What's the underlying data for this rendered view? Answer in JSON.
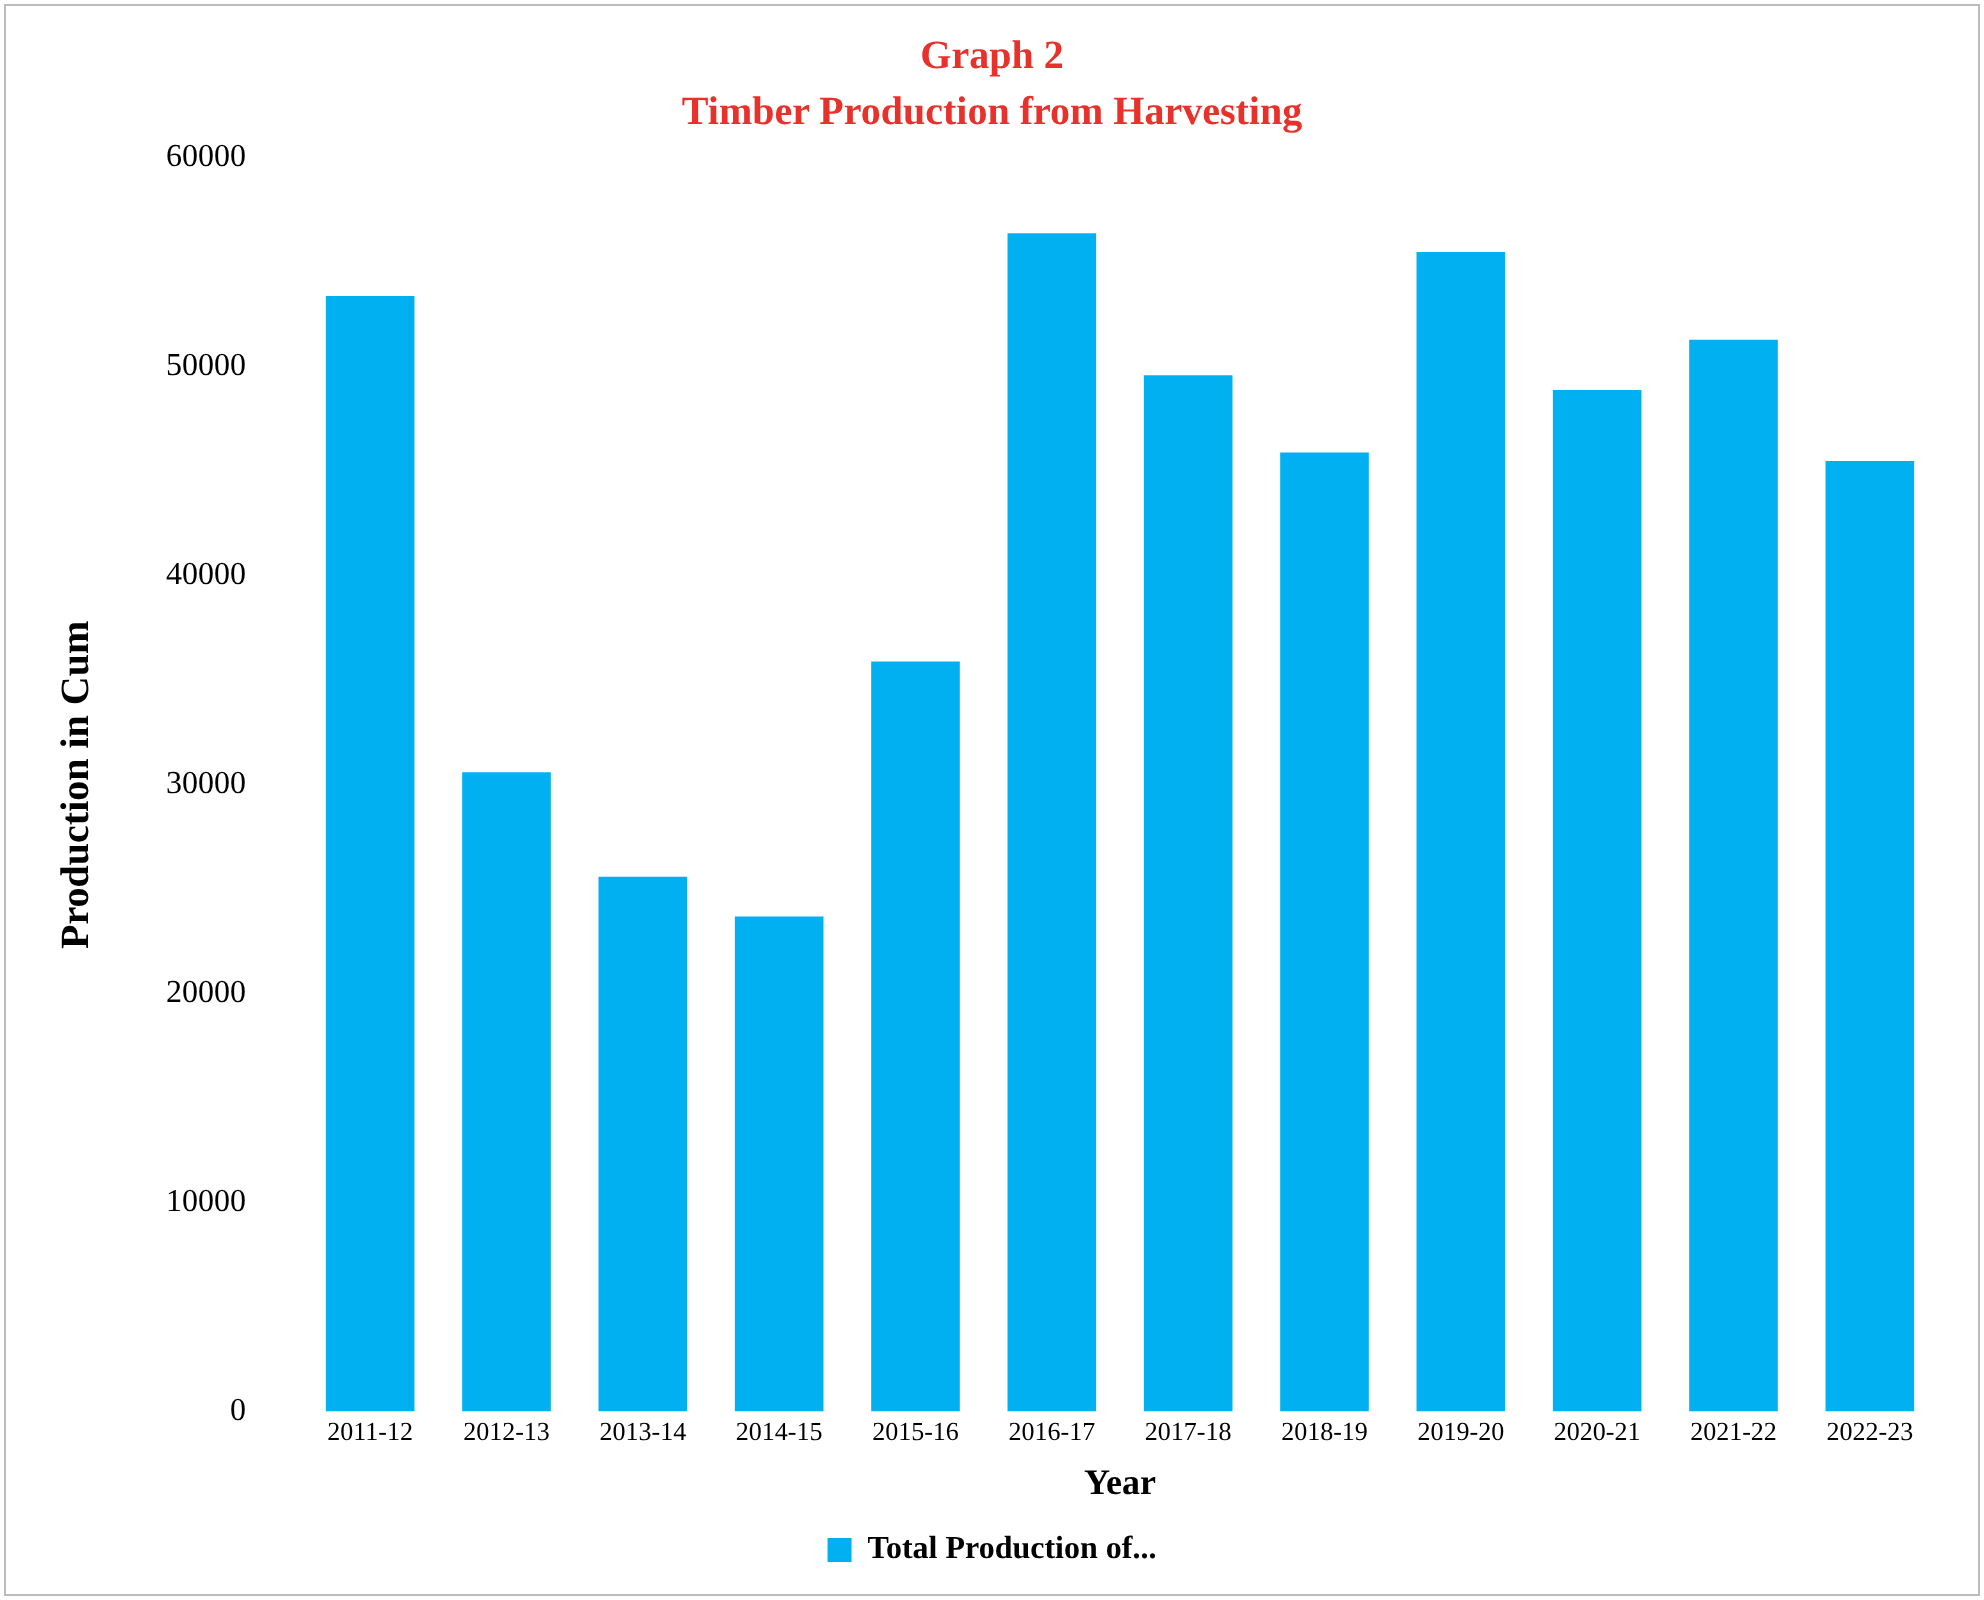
{
  "chart_data": {
    "type": "bar",
    "title": "Graph 2",
    "subtitle": "Timber Production from Harvesting",
    "xlabel": "Year",
    "ylabel": "Production in Cum",
    "categories": [
      "2011-12",
      "2012-13",
      "2013-14",
      "2014-15",
      "2015-16",
      "2016-17",
      "2017-18",
      "2018-19",
      "2019-20",
      "2020-21",
      "2021-22",
      "2022-23"
    ],
    "series": [
      {
        "name": "Total Production of...",
        "color": "#00b0f0",
        "values": [
          53400,
          30600,
          25600,
          23700,
          35900,
          56400,
          49600,
          45900,
          55500,
          48900,
          51300,
          45500
        ]
      }
    ],
    "ylim": [
      0,
      60000
    ],
    "yticks": [
      0,
      10000,
      20000,
      30000,
      40000,
      50000,
      60000
    ],
    "grid": false,
    "legend": "bottom"
  }
}
